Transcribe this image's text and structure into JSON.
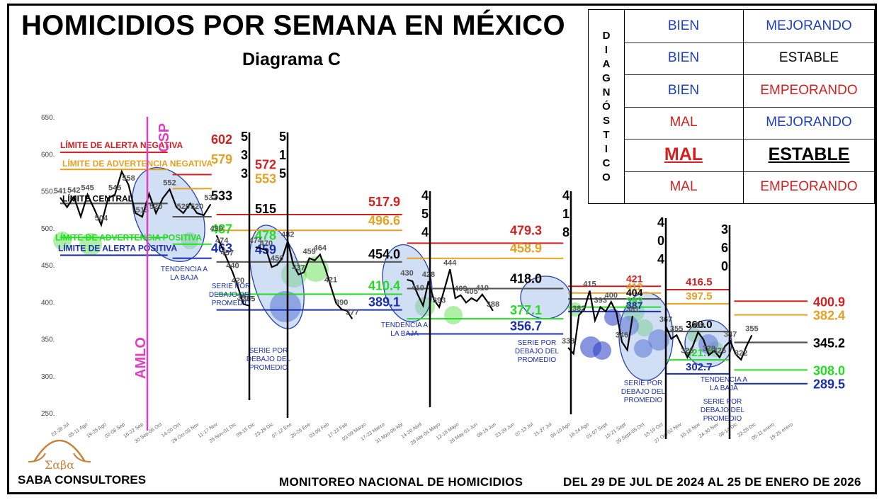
{
  "header": {
    "title": "HOMICIDIOS POR SEMANA EN MÉXICO",
    "subtitle": "Diagrama C"
  },
  "diagnostico": {
    "vertical_label": [
      "D",
      "I",
      "A",
      "G",
      "N",
      "Ó",
      "S",
      "T",
      "I",
      "C",
      "O"
    ],
    "rows": [
      {
        "estado": "BIEN",
        "tendencia": "MEJORANDO",
        "estado_color": "#1f3fbf",
        "tendencia_color": "#1f3fbf",
        "highlight": false
      },
      {
        "estado": "BIEN",
        "tendencia": "ESTABLE",
        "estado_color": "#1f3fbf",
        "tendencia_color": "#000000",
        "highlight": false
      },
      {
        "estado": "BIEN",
        "tendencia": "EMPEORANDO",
        "estado_color": "#1f3fbf",
        "tendencia_color": "#d32020",
        "highlight": false
      },
      {
        "estado": "MAL",
        "tendencia": "MEJORANDO",
        "estado_color": "#d32020",
        "tendencia_color": "#1f3fbf",
        "highlight": false
      },
      {
        "estado": "MAL",
        "tendencia": "ESTABLE",
        "estado_color": "#d32020",
        "tendencia_color": "#000000",
        "highlight": true
      },
      {
        "estado": "MAL",
        "tendencia": "EMPEORANDO",
        "estado_color": "#d32020",
        "tendencia_color": "#d32020",
        "highlight": false
      }
    ]
  },
  "footer": {
    "brand": "SABA CONSULTORES",
    "logo_text": "Σαβα",
    "monitor": "MONITOREO NACIONAL DE HOMICIDIOS",
    "period": "DEL 29 DE JUL DE 2024 AL 25 DE ENERO DE 2026"
  },
  "chart_data": {
    "type": "line",
    "ylim": [
      250,
      650
    ],
    "yticks": [
      "650.",
      "600.",
      "550.",
      "500.",
      "450.",
      "400.",
      "350.",
      "300.",
      "250."
    ],
    "colors": {
      "red": "#d32020",
      "orange": "#e8a020",
      "black": "#000000",
      "green": "#22dd22",
      "blue": "#1a2eb0",
      "magenta": "#e040c0",
      "gray": "#555555"
    },
    "x_labels": [
      "22-28 Jul",
      "05-11 Ago",
      "19-25 Ago",
      "02-08 Sep",
      "16-22 Sep",
      "30 Sep-06 Oct",
      "14-20 Oct",
      "28 Oct-03 Nov",
      "11-17 Nov",
      "25 Nov-01 Dic",
      "09-15 Dic",
      "23-29 Dic",
      "07-12 Ene",
      "20-26 Ene",
      "03-09 Feb",
      "17-23 Feb",
      "03-09 Marzo",
      "17-23 Marzo",
      "31 Mzo-06 Abr",
      "14-20 Abril",
      "28 Abr-04 Mayo",
      "12-18 Mayo",
      "26 May-01 Jun",
      "09-15 Jun",
      "23-29 Jun",
      "07-13 Jul",
      "21-27 Jul",
      "04-10 Ago",
      "18-24 Ago",
      "01-07 Sept",
      "15-21 Sept",
      "29 Sept-05 Oct",
      "13-19 Oct",
      "27 Oct-02 Nov",
      "10-16 Nov",
      "24-30 Nov",
      "08-14 Dic",
      "22-28 Dic",
      "05-11 enero",
      "19-25 enero"
    ],
    "series_values": [
      [
        541,
        528,
        542,
        515,
        545,
        525,
        504,
        540,
        545,
        576,
        558,
        520,
        515,
        546,
        520,
        540,
        552,
        528,
        520,
        533,
        520,
        517,
        532
      ],
      [
        490,
        474,
        457,
        440,
        420,
        397,
        395
      ],
      [
        474,
        472,
        470,
        447,
        450,
        460,
        482,
        451,
        437,
        440,
        459,
        456,
        464,
        445,
        421,
        398,
        390,
        388,
        377
      ],
      [
        430,
        428,
        410,
        395,
        428,
        403,
        393,
        418,
        444,
        405,
        409,
        399,
        405,
        401,
        410,
        400,
        388
      ],
      [
        338,
        330,
        382,
        390,
        415,
        375,
        393,
        387,
        400,
        385,
        346,
        335,
        381
      ],
      [
        367,
        350,
        355,
        340,
        325,
        340,
        359,
        349,
        328,
        334,
        325,
        340,
        347,
        329,
        322,
        340,
        355
      ]
    ],
    "series_start_index": [
      0,
      32,
      40,
      71,
      104,
      124
    ],
    "total_weeks": 153,
    "segments": [
      {
        "start": 0,
        "end": 22,
        "alerta_neg": 602,
        "advertencia_neg": 579,
        "central": 533,
        "advertencia_pos": 487,
        "alerta_pos": 463,
        "sigma_text": "5\n3\n3"
      },
      {
        "start": 23,
        "end": 31,
        "alerta_neg": 572,
        "advertencia_neg": 553,
        "central": 515,
        "advertencia_pos": 478,
        "alerta_pos": 459,
        "sigma_text": "5\n1\n5"
      },
      {
        "start": 32,
        "end": 70,
        "alerta_neg": 517.9,
        "advertencia_neg": 496.6,
        "central": 454.0,
        "advertencia_pos": 410.4,
        "alerta_pos": 389.1,
        "sigma_text": "4\n5\n4"
      },
      {
        "start": 71,
        "end": 103,
        "alerta_neg": 479.3,
        "advertencia_neg": 458.9,
        "central": 418.0,
        "advertencia_pos": 377.1,
        "alerta_pos": 356.7,
        "sigma_text": "4\n1\n8"
      },
      {
        "start": 104,
        "end": 123,
        "alerta_neg": 421,
        "advertencia_neg": 412,
        "central": 404,
        "advertencia_pos": 393,
        "alerta_pos": 387,
        "sigma_text": "4\n0\n4"
      },
      {
        "start": 124,
        "end": 137,
        "alerta_neg": 416.5,
        "advertencia_neg": 397.5,
        "central": 360.0,
        "advertencia_pos": 321.7,
        "alerta_pos": 302.7,
        "sigma_text": "3\n6\n0"
      },
      {
        "start": 138,
        "end": 153,
        "alerta_neg": 400.9,
        "advertencia_neg": 382.4,
        "central": 345.2,
        "advertencia_pos": 308.0,
        "alerta_pos": 289.5,
        "sigma_text": ""
      }
    ],
    "line_labels": {
      "alerta_neg": "LÍMITE DE ALERTA NEGATIVA",
      "advertencia_neg": "LÍMITE DE ADVERTENCIA NEGATIVA",
      "central": "LÍMITE CENTRAL",
      "advertencia_pos": "LÍMITE DE ADVERTENCIA POSITIVA",
      "alerta_pos": "LÍMITE DE ALERTA POSITIVA"
    },
    "annotations": [
      {
        "text": "AMLO",
        "kind": "vertical"
      },
      {
        "text": "CSP",
        "kind": "vertical"
      },
      {
        "text": "TENDENCIA A\nLA BAJA",
        "segment": 0
      },
      {
        "text": "SERIE POR\nDEBAJO DEL\nPROMEDIO",
        "segment": 1
      },
      {
        "text": "SERIE POR\nDEBAJO DEL\nPROMEDIO",
        "segment": 1
      },
      {
        "text": "TENDENCIA A\nLA BAJA",
        "segment": 2
      },
      {
        "text": "SERIE POR\nDEBAJO DEL\nPROMEDIO",
        "segment": 3
      },
      {
        "text": "SERIE POR\nDEBAJO DEL\nPROMEDIO",
        "segment": 4
      },
      {
        "text": "TENDENCIA A\nLA BAJA",
        "segment": 5
      },
      {
        "text": "SERIE POR\nDEBAJO DEL\nPROMEDIO",
        "segment": 5
      }
    ]
  }
}
